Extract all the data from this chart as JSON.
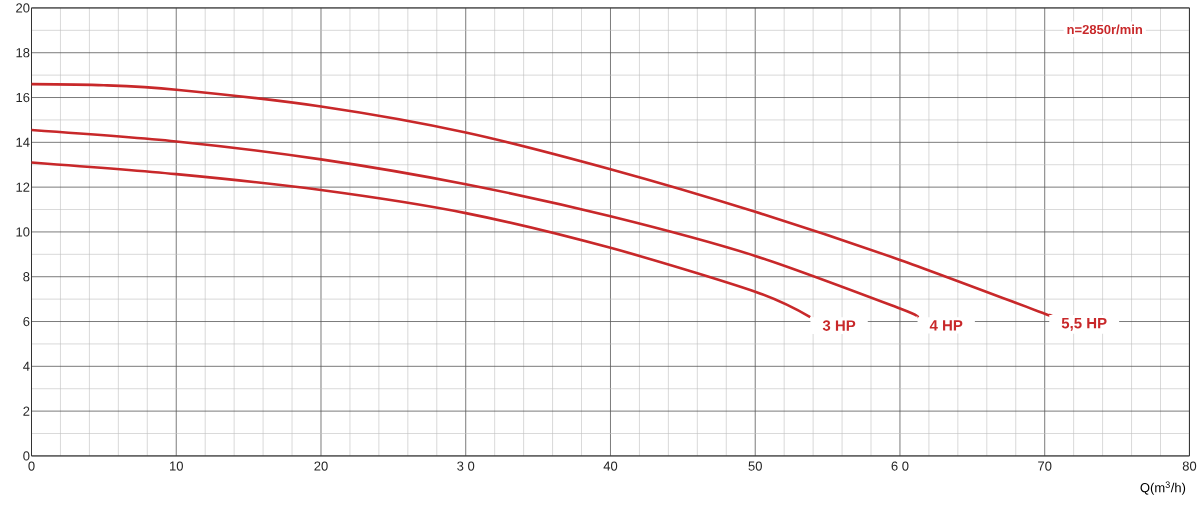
{
  "chart_data": {
    "type": "line",
    "xlabel": "Q(m$^{3}$/h)",
    "xlim": [
      0,
      80
    ],
    "ylim": [
      0,
      20
    ],
    "xticks": [
      0,
      10,
      20,
      {
        "value": 30,
        "label": "3 0"
      },
      40,
      50,
      {
        "value": 60,
        "label": "6 0"
      },
      70,
      80
    ],
    "yticks": [
      0,
      2,
      4,
      6,
      8,
      10,
      12,
      14,
      16,
      18,
      20
    ],
    "grid": true,
    "marker": "none",
    "line_style": "solid",
    "annotations": [
      "n=2850r/min"
    ],
    "series": [
      {
        "name": "3 HP",
        "color": "#c8282a",
        "x": [
          0,
          10,
          20,
          30,
          40,
          50,
          53.8
        ],
        "values": [
          13.1,
          12.58,
          11.87,
          10.84,
          9.29,
          7.33,
          6.2
        ]
      },
      {
        "name": "4 HP",
        "color": "#c8282a",
        "x": [
          0,
          10,
          20,
          30,
          40,
          50,
          60,
          61.2
        ],
        "values": [
          14.55,
          14.04,
          13.24,
          12.13,
          10.7,
          8.93,
          6.58,
          6.2
        ]
      },
      {
        "name": "5,5 HP",
        "color": "#c8282a",
        "x": [
          0,
          5,
          10,
          20,
          30,
          40,
          50,
          60,
          70,
          70.3
        ],
        "values": [
          16.6,
          16.55,
          16.35,
          15.6,
          14.44,
          12.8,
          10.9,
          8.75,
          6.35,
          6.3
        ]
      }
    ]
  }
}
